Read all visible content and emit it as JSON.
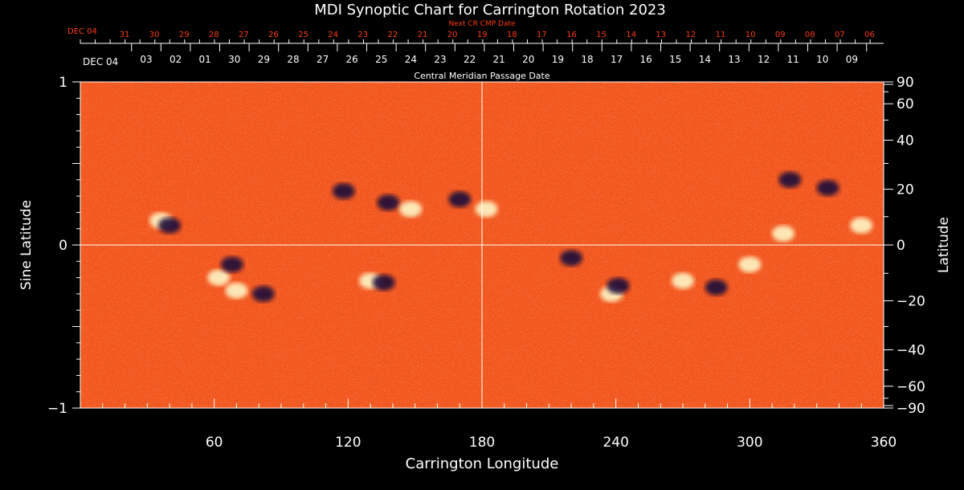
{
  "chart_data": {
    "type": "heatmap",
    "title": "MDI Synoptic Chart for Carrington Rotation 2023",
    "xlabel": "Carrington Longitude",
    "ylabel_left": "Sine Latitude",
    "ylabel_right": "Latitude",
    "xlim": [
      0,
      360
    ],
    "ylim_sine": [
      -1,
      1
    ],
    "x_ticks": [
      60,
      120,
      180,
      240,
      300,
      360
    ],
    "left_y_ticks": [
      {
        "v": 1,
        "label": "1"
      },
      {
        "v": 0,
        "label": "0"
      },
      {
        "v": -1,
        "label": "−1"
      }
    ],
    "right_y_ticks": [
      {
        "deg": 90,
        "label": "90"
      },
      {
        "deg": 60,
        "label": "60"
      },
      {
        "deg": 40,
        "label": "40"
      },
      {
        "deg": 20,
        "label": "20"
      },
      {
        "deg": 0,
        "label": "0"
      },
      {
        "deg": -20,
        "label": "−20"
      },
      {
        "deg": -40,
        "label": "−40"
      },
      {
        "deg": -60,
        "label": "−60"
      },
      {
        "deg": -90,
        "label": "−90"
      }
    ],
    "cmp_axis": {
      "label": "Central Meridian Passage Date",
      "start_label": "DEC 04",
      "labels": [
        "03",
        "02",
        "01",
        "30",
        "29",
        "28",
        "27",
        "26",
        "25",
        "24",
        "23",
        "22",
        "21",
        "20",
        "19",
        "18",
        "17",
        "16",
        "15",
        "14",
        "13",
        "12",
        "11",
        "10",
        "09"
      ]
    },
    "next_cr_axis": {
      "label": "Next CR CMP Date",
      "start_label": "DEC 04",
      "labels": [
        "31",
        "30",
        "29",
        "28",
        "27",
        "26",
        "25",
        "24",
        "23",
        "22",
        "21",
        "20",
        "19",
        "18",
        "17",
        "16",
        "15",
        "14",
        "13",
        "12",
        "11",
        "10",
        "09",
        "08",
        "07",
        "06"
      ]
    },
    "guide_lines": {
      "longitude": 180,
      "sine_latitude": 0
    },
    "magnetic_regions": [
      {
        "lon": 36,
        "sinlat": 0.15,
        "polarity": "positive"
      },
      {
        "lon": 40,
        "sinlat": 0.12,
        "polarity": "negative"
      },
      {
        "lon": 62,
        "sinlat": -0.2,
        "polarity": "positive"
      },
      {
        "lon": 70,
        "sinlat": -0.28,
        "polarity": "positive"
      },
      {
        "lon": 82,
        "sinlat": -0.3,
        "polarity": "negative"
      },
      {
        "lon": 68,
        "sinlat": -0.12,
        "polarity": "negative"
      },
      {
        "lon": 118,
        "sinlat": 0.33,
        "polarity": "negative"
      },
      {
        "lon": 138,
        "sinlat": 0.26,
        "polarity": "negative"
      },
      {
        "lon": 148,
        "sinlat": 0.22,
        "polarity": "positive"
      },
      {
        "lon": 170,
        "sinlat": 0.28,
        "polarity": "negative"
      },
      {
        "lon": 182,
        "sinlat": 0.22,
        "polarity": "positive"
      },
      {
        "lon": 130,
        "sinlat": -0.22,
        "polarity": "positive"
      },
      {
        "lon": 136,
        "sinlat": -0.23,
        "polarity": "negative"
      },
      {
        "lon": 220,
        "sinlat": -0.08,
        "polarity": "negative"
      },
      {
        "lon": 238,
        "sinlat": -0.3,
        "polarity": "positive"
      },
      {
        "lon": 241,
        "sinlat": -0.25,
        "polarity": "negative"
      },
      {
        "lon": 270,
        "sinlat": -0.22,
        "polarity": "positive"
      },
      {
        "lon": 285,
        "sinlat": -0.26,
        "polarity": "negative"
      },
      {
        "lon": 300,
        "sinlat": -0.12,
        "polarity": "positive"
      },
      {
        "lon": 318,
        "sinlat": 0.4,
        "polarity": "negative"
      },
      {
        "lon": 335,
        "sinlat": 0.35,
        "polarity": "negative"
      },
      {
        "lon": 350,
        "sinlat": 0.12,
        "polarity": "positive"
      },
      {
        "lon": 315,
        "sinlat": 0.07,
        "polarity": "positive"
      }
    ]
  },
  "colors": {
    "background": "#000000",
    "field_base": "#f2541c",
    "positive": "#ffffd0",
    "negative": "#1a0a3a",
    "axis": "#ffffff",
    "accent_red": "#ff3b14"
  }
}
